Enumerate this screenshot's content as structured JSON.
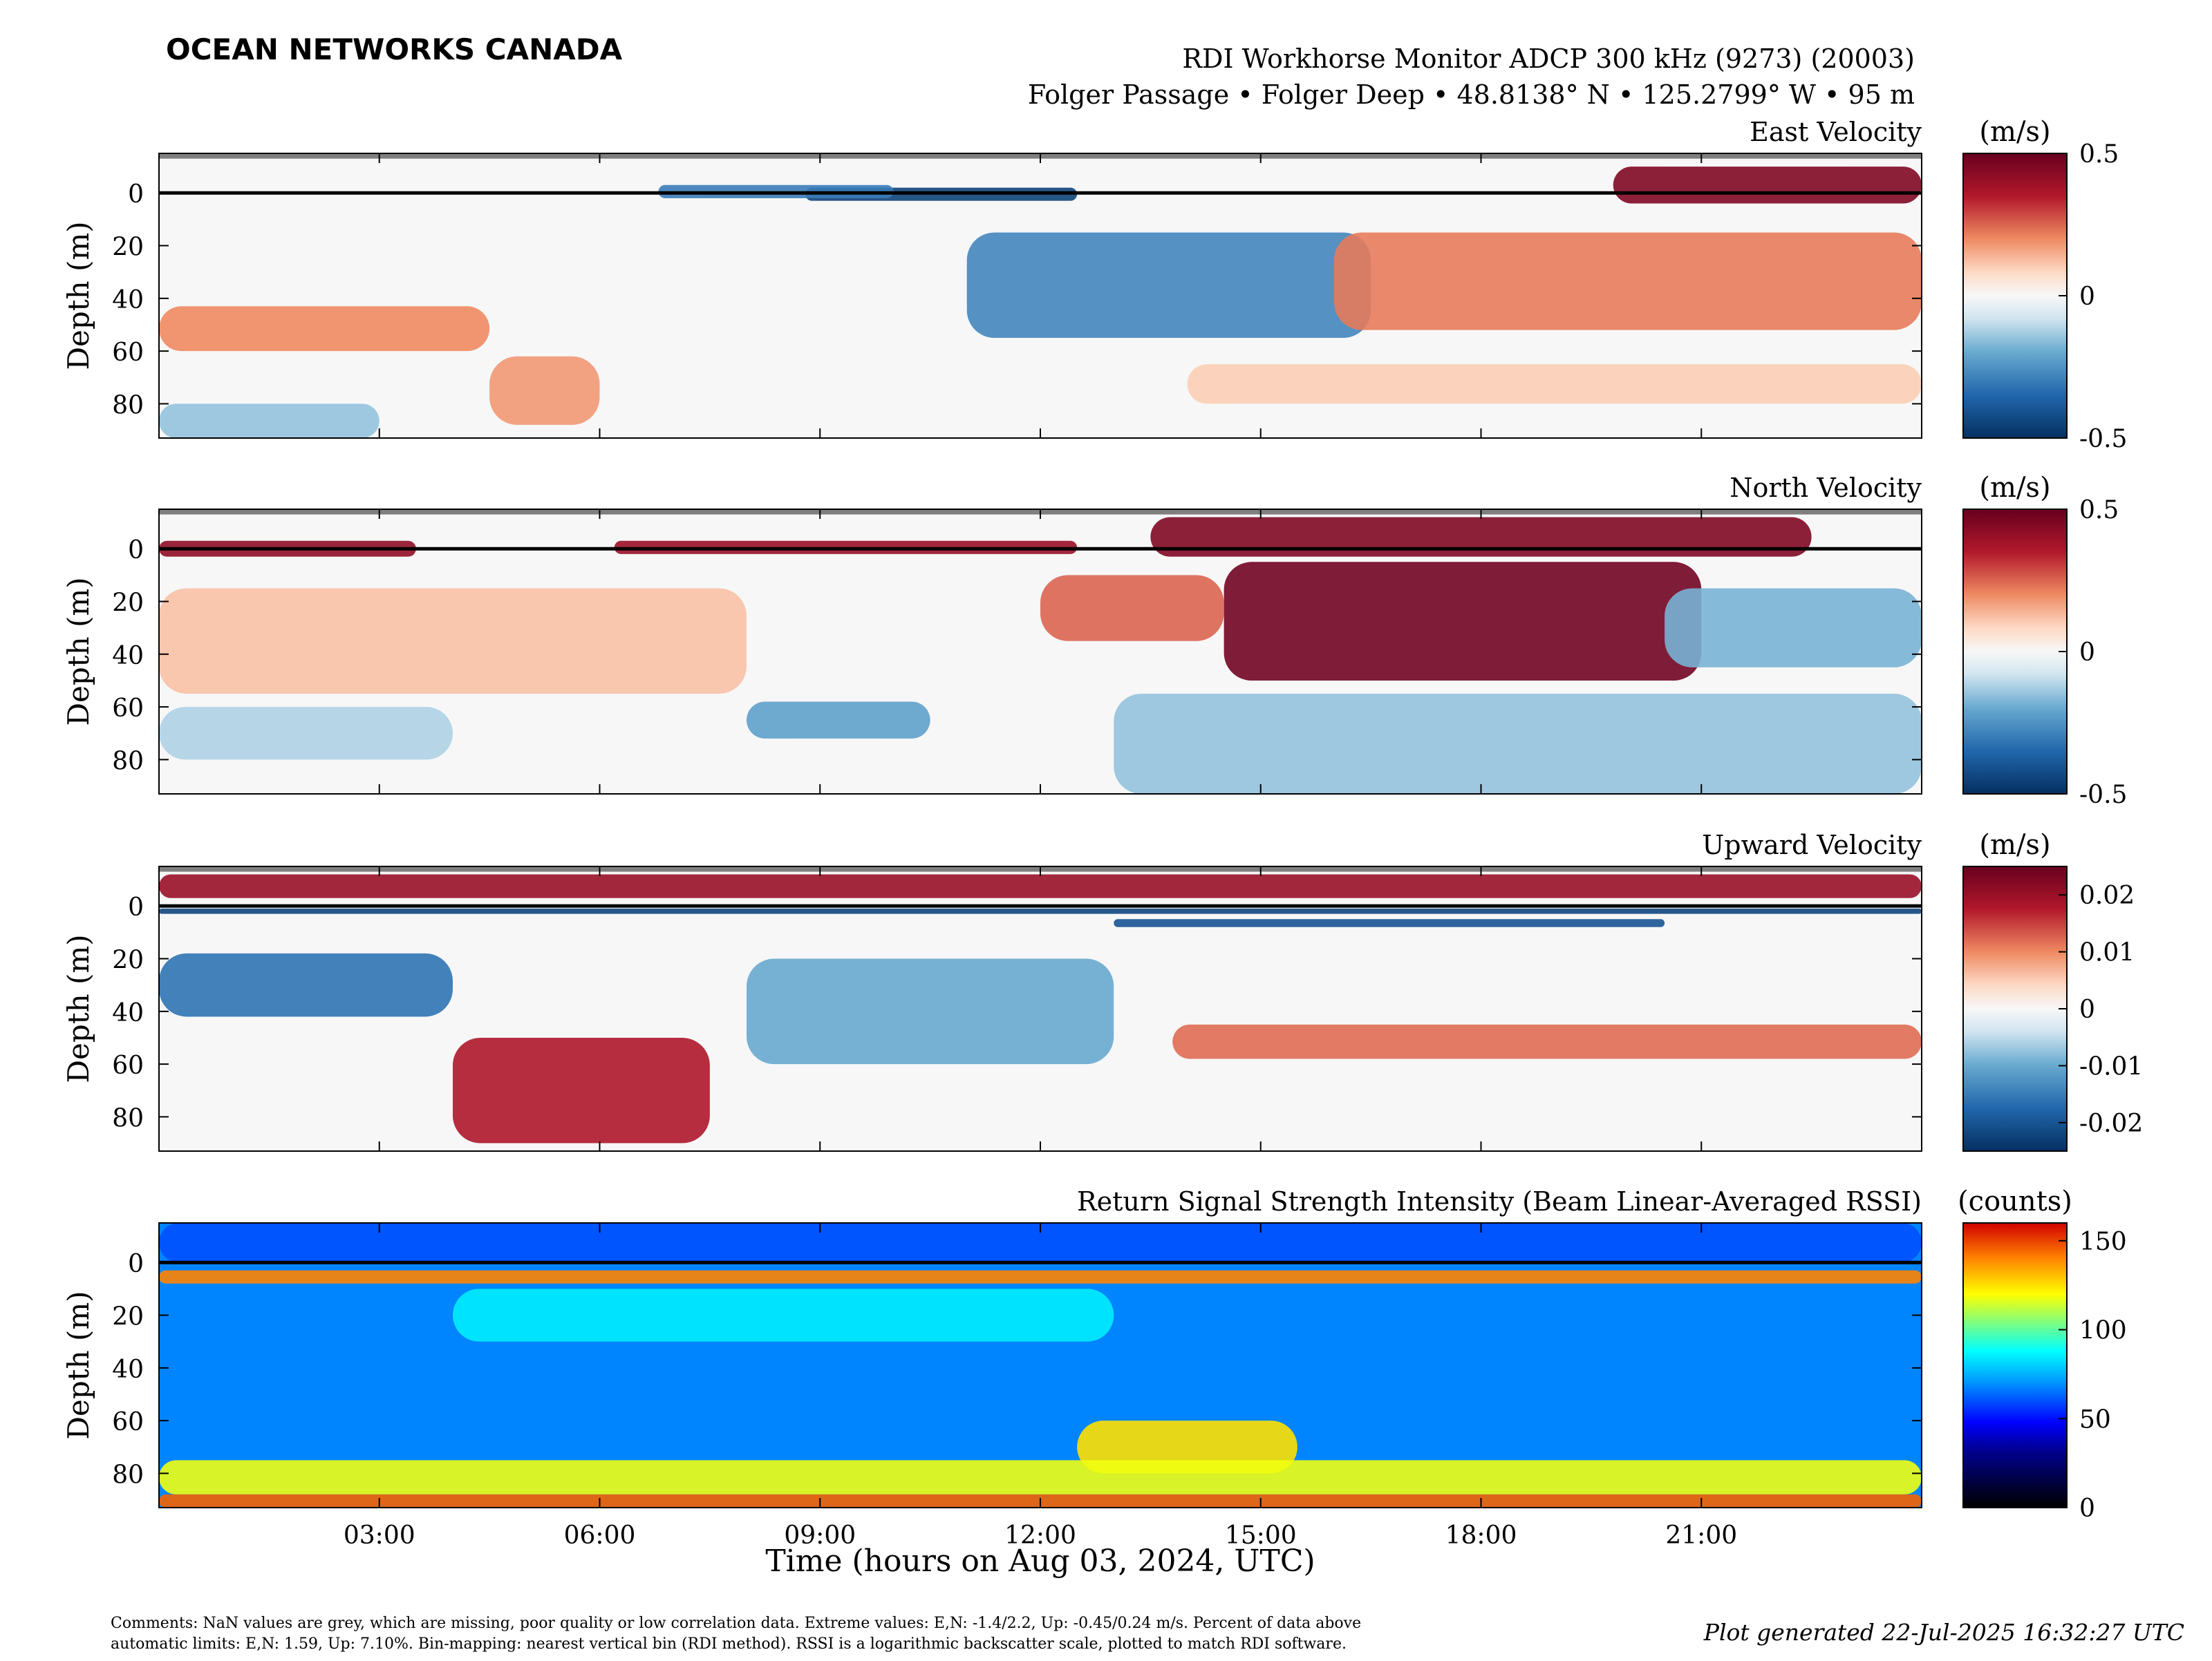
{
  "brand": {
    "name": "OCEAN NETWORKS CANADA",
    "color": "#1ba1c8"
  },
  "header": {
    "title": "RDI Workhorse Monitor ADCP 300 kHz (9273) (20003)",
    "subtitle": "Folger Passage • Folger Deep • 48.8138° N • 125.2799° W • 95 m"
  },
  "chart_data": [
    {
      "type": "heatmap",
      "title": "East Velocity",
      "ylabel": "Depth (m)",
      "ylim": [
        93,
        -15
      ],
      "yticks": [
        0,
        20,
        40,
        60,
        80
      ],
      "surface_line_depth": 0,
      "colorbar": {
        "label": "(m/s)",
        "scale": "diverging-red-blue",
        "range": [
          -0.5,
          0.5
        ],
        "ticks": [
          "0.5",
          "0",
          "-0.5"
        ],
        "tick_values": [
          0.5,
          0,
          -0.5
        ]
      },
      "features": [
        {
          "t_start": 8.8,
          "t_end": 12.5,
          "depth_top": -2,
          "depth_bottom": 3,
          "value": -0.45
        },
        {
          "t_start": 6.8,
          "t_end": 10.0,
          "depth_top": -3,
          "depth_bottom": 2,
          "value": -0.3
        },
        {
          "t_start": 19.8,
          "t_end": 24.0,
          "depth_top": -10,
          "depth_bottom": 4,
          "value": 0.45
        },
        {
          "t_start": 11.0,
          "t_end": 16.5,
          "depth_top": 15,
          "depth_bottom": 55,
          "value": -0.28
        },
        {
          "t_start": 16.0,
          "t_end": 24.0,
          "depth_top": 15,
          "depth_bottom": 52,
          "value": 0.22
        },
        {
          "t_start": 0.0,
          "t_end": 4.5,
          "depth_top": 43,
          "depth_bottom": 60,
          "value": 0.2
        },
        {
          "t_start": 4.5,
          "t_end": 6.0,
          "depth_top": 62,
          "depth_bottom": 88,
          "value": 0.18
        },
        {
          "t_start": 0.0,
          "t_end": 3.0,
          "depth_top": 80,
          "depth_bottom": 93,
          "value": -0.15
        },
        {
          "t_start": 14.0,
          "t_end": 24.0,
          "depth_top": 65,
          "depth_bottom": 80,
          "value": 0.1
        }
      ]
    },
    {
      "type": "heatmap",
      "title": "North Velocity",
      "ylabel": "Depth (m)",
      "ylim": [
        93,
        -15
      ],
      "yticks": [
        0,
        20,
        40,
        60,
        80
      ],
      "surface_line_depth": 0,
      "colorbar": {
        "label": "(m/s)",
        "scale": "diverging-red-blue",
        "range": [
          -0.5,
          0.5
        ],
        "ticks": [
          "0.5",
          "0",
          "-0.5"
        ],
        "tick_values": [
          0.5,
          0,
          -0.5
        ]
      },
      "features": [
        {
          "t_start": 0.0,
          "t_end": 3.5,
          "depth_top": -3,
          "depth_bottom": 3,
          "value": 0.42
        },
        {
          "t_start": 6.2,
          "t_end": 12.5,
          "depth_top": -3,
          "depth_bottom": 2,
          "value": 0.4
        },
        {
          "t_start": 13.5,
          "t_end": 22.5,
          "depth_top": -12,
          "depth_bottom": 3,
          "value": 0.45
        },
        {
          "t_start": 14.5,
          "t_end": 21.0,
          "depth_top": 5,
          "depth_bottom": 50,
          "value": 0.48
        },
        {
          "t_start": 12.0,
          "t_end": 14.5,
          "depth_top": 10,
          "depth_bottom": 35,
          "value": 0.25
        },
        {
          "t_start": 0.0,
          "t_end": 8.0,
          "depth_top": 15,
          "depth_bottom": 55,
          "value": 0.12
        },
        {
          "t_start": 8.0,
          "t_end": 10.5,
          "depth_top": 58,
          "depth_bottom": 72,
          "value": -0.22
        },
        {
          "t_start": 20.5,
          "t_end": 24.0,
          "depth_top": 15,
          "depth_bottom": 45,
          "value": -0.18
        },
        {
          "t_start": 13.0,
          "t_end": 24.0,
          "depth_top": 55,
          "depth_bottom": 93,
          "value": -0.15
        },
        {
          "t_start": 0.0,
          "t_end": 4.0,
          "depth_top": 60,
          "depth_bottom": 80,
          "value": -0.12
        }
      ]
    },
    {
      "type": "heatmap",
      "title": "Upward Velocity",
      "ylabel": "Depth (m)",
      "ylim": [
        93,
        -15
      ],
      "yticks": [
        0,
        20,
        40,
        60,
        80
      ],
      "surface_line_depth": 0,
      "colorbar": {
        "label": "(m/s)",
        "scale": "diverging-red-blue",
        "range": [
          -0.025,
          0.025
        ],
        "ticks": [
          "0.02",
          "0.01",
          "0",
          "-0.01",
          "-0.02"
        ],
        "tick_values": [
          0.02,
          0.01,
          0,
          -0.01,
          -0.02
        ]
      },
      "features": [
        {
          "t_start": 0.0,
          "t_end": 24.0,
          "depth_top": -12,
          "depth_bottom": -3,
          "value": 0.02
        },
        {
          "t_start": 0.0,
          "t_end": 24.0,
          "depth_top": 1,
          "depth_bottom": 3,
          "value": -0.022
        },
        {
          "t_start": 13.0,
          "t_end": 20.5,
          "depth_top": 5,
          "depth_bottom": 8,
          "value": -0.02
        },
        {
          "t_start": 0.0,
          "t_end": 4.0,
          "depth_top": 18,
          "depth_bottom": 42,
          "value": -0.016
        },
        {
          "t_start": 4.0,
          "t_end": 7.5,
          "depth_top": 50,
          "depth_bottom": 90,
          "value": 0.018
        },
        {
          "t_start": 13.8,
          "t_end": 24.0,
          "depth_top": 45,
          "depth_bottom": 58,
          "value": 0.012
        },
        {
          "t_start": 8.0,
          "t_end": 13.0,
          "depth_top": 20,
          "depth_bottom": 60,
          "value": -0.01
        }
      ]
    },
    {
      "type": "heatmap",
      "title": "Return Signal Strength Intensity (Beam Linear-Averaged RSSI)",
      "ylabel": "Depth (m)",
      "ylim": [
        93,
        -15
      ],
      "yticks": [
        0,
        20,
        40,
        60,
        80
      ],
      "surface_line_depth": 0,
      "colorbar": {
        "label": "(counts)",
        "scale": "jet",
        "range": [
          0,
          160
        ],
        "ticks": [
          "150",
          "100",
          "50",
          "0"
        ],
        "tick_values": [
          150,
          100,
          50,
          0
        ]
      },
      "features": [
        {
          "t_start": 0.0,
          "t_end": 24.0,
          "depth_top": 3,
          "depth_bottom": 8,
          "value": 140
        },
        {
          "t_start": 0.0,
          "t_end": 24.0,
          "depth_top": -15,
          "depth_bottom": 0,
          "value": 60
        },
        {
          "t_start": 4.0,
          "t_end": 13.0,
          "depth_top": 10,
          "depth_bottom": 30,
          "value": 85
        },
        {
          "t_start": 12.5,
          "t_end": 15.5,
          "depth_top": 60,
          "depth_bottom": 80,
          "value": 125
        },
        {
          "t_start": 0.0,
          "t_end": 24.0,
          "depth_top": 75,
          "depth_bottom": 88,
          "value": 118
        },
        {
          "t_start": 0.0,
          "t_end": 24.0,
          "depth_top": 88,
          "depth_bottom": 93,
          "value": 145
        }
      ]
    }
  ],
  "xaxis": {
    "label": "Time (hours on Aug 03, 2024, UTC)",
    "range_hours": [
      0,
      24
    ],
    "ticks": [
      {
        "hour": 3,
        "label": "03:00"
      },
      {
        "hour": 6,
        "label": "06:00"
      },
      {
        "hour": 9,
        "label": "09:00"
      },
      {
        "hour": 12,
        "label": "12:00"
      },
      {
        "hour": 15,
        "label": "15:00"
      },
      {
        "hour": 18,
        "label": "18:00"
      },
      {
        "hour": 21,
        "label": "21:00"
      }
    ]
  },
  "footer": {
    "comments_line1": "Comments: NaN values are grey, which are missing, poor quality or low correlation data. Extreme values: E,N: -1.4/2.2, Up: -0.45/0.24 m/s. Percent of data above",
    "comments_line2": "automatic limits: E,N: 1.59, Up: 7.10%. Bin-mapping: nearest vertical bin (RDI method). RSSI is a logarithmic backscatter scale, plotted to match RDI software.",
    "generated": "Plot generated 22-Jul-2025 16:32:27 UTC"
  }
}
